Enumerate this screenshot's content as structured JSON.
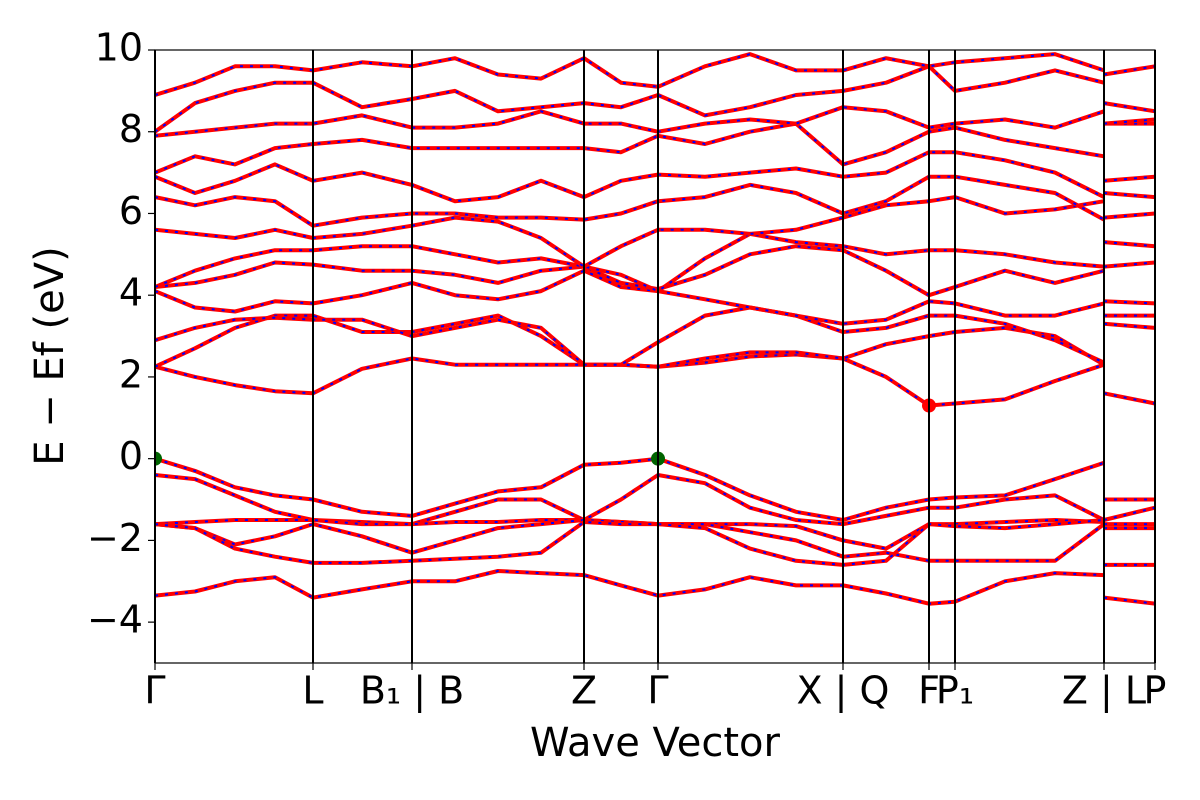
{
  "chart_data": {
    "type": "line",
    "xlabel": "Wave Vector",
    "ylabel": "E − Ef (eV)",
    "xlim": [
      0,
      1000
    ],
    "ylim": [
      -5,
      10
    ],
    "xticks": [
      {
        "value": 0,
        "label": "Γ"
      },
      {
        "value": 158,
        "label": "L"
      },
      {
        "value": 257,
        "label": "B₁ | B"
      },
      {
        "value": 429,
        "label": "Z"
      },
      {
        "value": 503,
        "label": "Γ"
      },
      {
        "value": 688,
        "label": "X | Q"
      },
      {
        "value": 774,
        "label": "F"
      },
      {
        "value": 800,
        "label": "P₁"
      },
      {
        "value": 949,
        "label": "Z | L"
      },
      {
        "value": 1000,
        "label": "P"
      }
    ],
    "yticks": [
      {
        "value": -4,
        "label": "−4"
      },
      {
        "value": -2,
        "label": "−2"
      },
      0,
      2,
      4,
      6,
      8,
      10
    ],
    "xgrid": true,
    "color": "#ff0000",
    "dash_color": "#0000ff",
    "x": [
      0,
      40,
      80,
      120,
      158,
      207,
      257,
      300,
      343,
      386,
      429,
      466,
      503,
      550,
      595,
      641,
      688,
      731,
      774,
      800,
      850,
      900,
      949,
      949,
      949,
      1000
    ],
    "series": [
      {
        "values": [
          0,
          -0.3,
          -0.7,
          -0.9,
          -1.0,
          -1.3,
          -1.4,
          -1.1,
          -0.8,
          -0.7,
          -0.15,
          -0.1,
          0,
          -0.4,
          -0.9,
          -1.3,
          -1.5,
          -1.2,
          -1.0,
          -0.95,
          -0.9,
          -0.5,
          -0.1,
          null,
          -1.0,
          -1.0
        ]
      },
      {
        "values": [
          -0.4,
          -0.5,
          -0.9,
          -1.3,
          -1.5,
          -1.55,
          -1.6,
          -1.3,
          -1.0,
          -1.0,
          -1.5,
          -1.0,
          -0.4,
          -0.6,
          -1.2,
          -1.5,
          -1.6,
          -1.4,
          -1.2,
          -1.2,
          -1.0,
          -0.9,
          -1.5,
          null,
          -1.5,
          -1.2
        ]
      },
      {
        "values": [
          -1.6,
          -1.55,
          -1.5,
          -1.5,
          -1.5,
          -1.6,
          -1.6,
          -1.55,
          -1.55,
          -1.5,
          -1.5,
          -1.55,
          -1.6,
          -1.6,
          -1.6,
          -1.65,
          -2.0,
          -2.2,
          -1.6,
          -1.6,
          -1.55,
          -1.5,
          -1.55,
          null,
          -1.6,
          -1.6
        ]
      },
      {
        "values": [
          -1.6,
          -1.7,
          -2.1,
          -1.9,
          -1.6,
          -1.9,
          -2.3,
          -2.0,
          -1.7,
          -1.6,
          -1.5,
          -1.55,
          -1.6,
          -1.6,
          -1.8,
          -2.0,
          -2.4,
          -2.3,
          -2.5,
          -2.5,
          -2.5,
          -2.5,
          -1.6,
          null,
          -2.6,
          -2.6
        ]
      },
      {
        "values": [
          -1.6,
          -1.7,
          -2.2,
          -2.4,
          -2.55,
          -2.55,
          -2.5,
          -2.45,
          -2.4,
          -2.3,
          -1.55,
          -1.6,
          -1.6,
          -1.7,
          -2.2,
          -2.5,
          -2.6,
          -2.5,
          -1.6,
          -1.65,
          -1.7,
          -1.6,
          -1.5,
          null,
          -1.7,
          -1.7
        ]
      },
      {
        "values": [
          -3.35,
          -3.25,
          -3.0,
          -2.9,
          -3.4,
          -3.2,
          -3.0,
          -3.0,
          -2.75,
          -2.8,
          -2.85,
          -3.1,
          -3.35,
          -3.2,
          -2.9,
          -3.1,
          -3.1,
          -3.3,
          -3.55,
          -3.5,
          -3.0,
          -2.8,
          -2.85,
          null,
          -3.4,
          -3.55
        ]
      },
      {
        "values": [
          2.25,
          2.0,
          1.8,
          1.65,
          1.6,
          2.2,
          2.45,
          2.3,
          2.3,
          2.3,
          2.3,
          2.3,
          2.25,
          2.35,
          2.5,
          2.55,
          2.45,
          2.0,
          1.3,
          1.35,
          1.45,
          1.9,
          2.3,
          null,
          1.6,
          1.35
        ]
      },
      {
        "values": [
          2.25,
          2.7,
          3.2,
          3.5,
          3.5,
          3.1,
          3.1,
          3.3,
          3.5,
          3.0,
          2.3,
          2.3,
          2.25,
          2.45,
          2.6,
          2.6,
          2.45,
          2.8,
          3.0,
          3.1,
          3.2,
          3.0,
          2.3,
          null,
          3.3,
          3.2
        ]
      },
      {
        "values": [
          2.9,
          3.2,
          3.4,
          3.45,
          3.4,
          3.4,
          3.0,
          3.2,
          3.4,
          3.2,
          2.3,
          2.3,
          2.85,
          3.5,
          3.7,
          3.5,
          3.1,
          3.2,
          3.5,
          3.5,
          3.3,
          2.9,
          2.35,
          null,
          3.5,
          3.5
        ]
      },
      {
        "values": [
          4.1,
          3.7,
          3.6,
          3.85,
          3.8,
          4.0,
          4.3,
          4.0,
          3.9,
          4.1,
          4.6,
          4.2,
          4.1,
          3.9,
          3.7,
          3.5,
          3.3,
          3.4,
          3.85,
          3.8,
          3.5,
          3.5,
          3.8,
          null,
          3.85,
          3.8
        ]
      },
      {
        "values": [
          4.2,
          4.3,
          4.5,
          4.8,
          4.75,
          4.6,
          4.6,
          4.5,
          4.3,
          4.6,
          4.7,
          4.3,
          4.15,
          4.5,
          5.0,
          5.2,
          5.1,
          4.6,
          4.0,
          4.2,
          4.6,
          4.3,
          4.6,
          null,
          4.7,
          4.8
        ]
      },
      {
        "values": [
          4.2,
          4.6,
          4.9,
          5.1,
          5.1,
          5.2,
          5.2,
          5.0,
          4.8,
          4.9,
          4.7,
          4.5,
          4.1,
          4.9,
          5.5,
          5.3,
          5.2,
          5.0,
          5.1,
          5.1,
          5.0,
          4.8,
          4.7,
          null,
          5.3,
          5.2
        ]
      },
      {
        "values": [
          5.6,
          5.5,
          5.4,
          5.6,
          5.4,
          5.5,
          5.7,
          5.9,
          5.8,
          5.4,
          4.7,
          5.2,
          5.6,
          5.6,
          5.5,
          5.6,
          5.9,
          6.2,
          6.3,
          6.4,
          6.0,
          6.1,
          6.3,
          null,
          5.9,
          6.0
        ]
      },
      {
        "values": [
          6.4,
          6.2,
          6.4,
          6.3,
          5.7,
          5.9,
          6.0,
          6.0,
          5.9,
          5.9,
          5.85,
          6.0,
          6.3,
          6.4,
          6.7,
          6.5,
          6.0,
          6.3,
          6.9,
          6.9,
          6.7,
          6.5,
          5.85,
          null,
          6.5,
          6.4
        ]
      },
      {
        "values": [
          6.9,
          6.5,
          6.8,
          7.2,
          6.8,
          7.0,
          6.7,
          6.3,
          6.4,
          6.8,
          6.4,
          6.8,
          6.95,
          6.9,
          7.0,
          7.1,
          6.9,
          7.0,
          7.5,
          7.5,
          7.3,
          7.0,
          6.4,
          null,
          6.8,
          6.9
        ]
      },
      {
        "values": [
          7.0,
          7.4,
          7.2,
          7.6,
          7.7,
          7.8,
          7.6,
          7.6,
          7.6,
          7.6,
          7.6,
          7.5,
          7.9,
          7.7,
          8.0,
          8.2,
          7.2,
          7.5,
          8.0,
          8.1,
          7.8,
          7.6,
          7.4,
          null,
          8.2,
          8.2
        ]
      },
      {
        "values": [
          7.9,
          8.0,
          8.1,
          8.2,
          8.2,
          8.4,
          8.1,
          8.1,
          8.2,
          8.5,
          8.2,
          8.2,
          8.0,
          8.2,
          8.3,
          8.2,
          8.6,
          8.5,
          8.1,
          8.2,
          8.3,
          8.1,
          8.5,
          null,
          8.2,
          8.3
        ]
      },
      {
        "values": [
          8.0,
          8.7,
          9.0,
          9.2,
          9.2,
          8.6,
          8.8,
          9.0,
          8.5,
          8.6,
          8.7,
          8.6,
          8.9,
          8.4,
          8.6,
          8.9,
          9.0,
          9.2,
          9.6,
          9.0,
          9.2,
          9.5,
          9.2,
          null,
          8.7,
          8.5
        ]
      },
      {
        "values": [
          8.9,
          9.2,
          9.6,
          9.6,
          9.5,
          9.7,
          9.6,
          9.8,
          9.4,
          9.3,
          9.8,
          9.2,
          9.1,
          9.6,
          9.9,
          9.5,
          9.5,
          9.8,
          9.6,
          9.7,
          9.8,
          9.9,
          9.5,
          null,
          9.4,
          9.6
        ]
      }
    ],
    "vbm": {
      "x": [
        0,
        503
      ],
      "values": [
        0,
        0
      ],
      "color": "#006400"
    },
    "cbm": {
      "x": [
        774
      ],
      "values": [
        1.3
      ],
      "color": "#ff0000"
    }
  }
}
